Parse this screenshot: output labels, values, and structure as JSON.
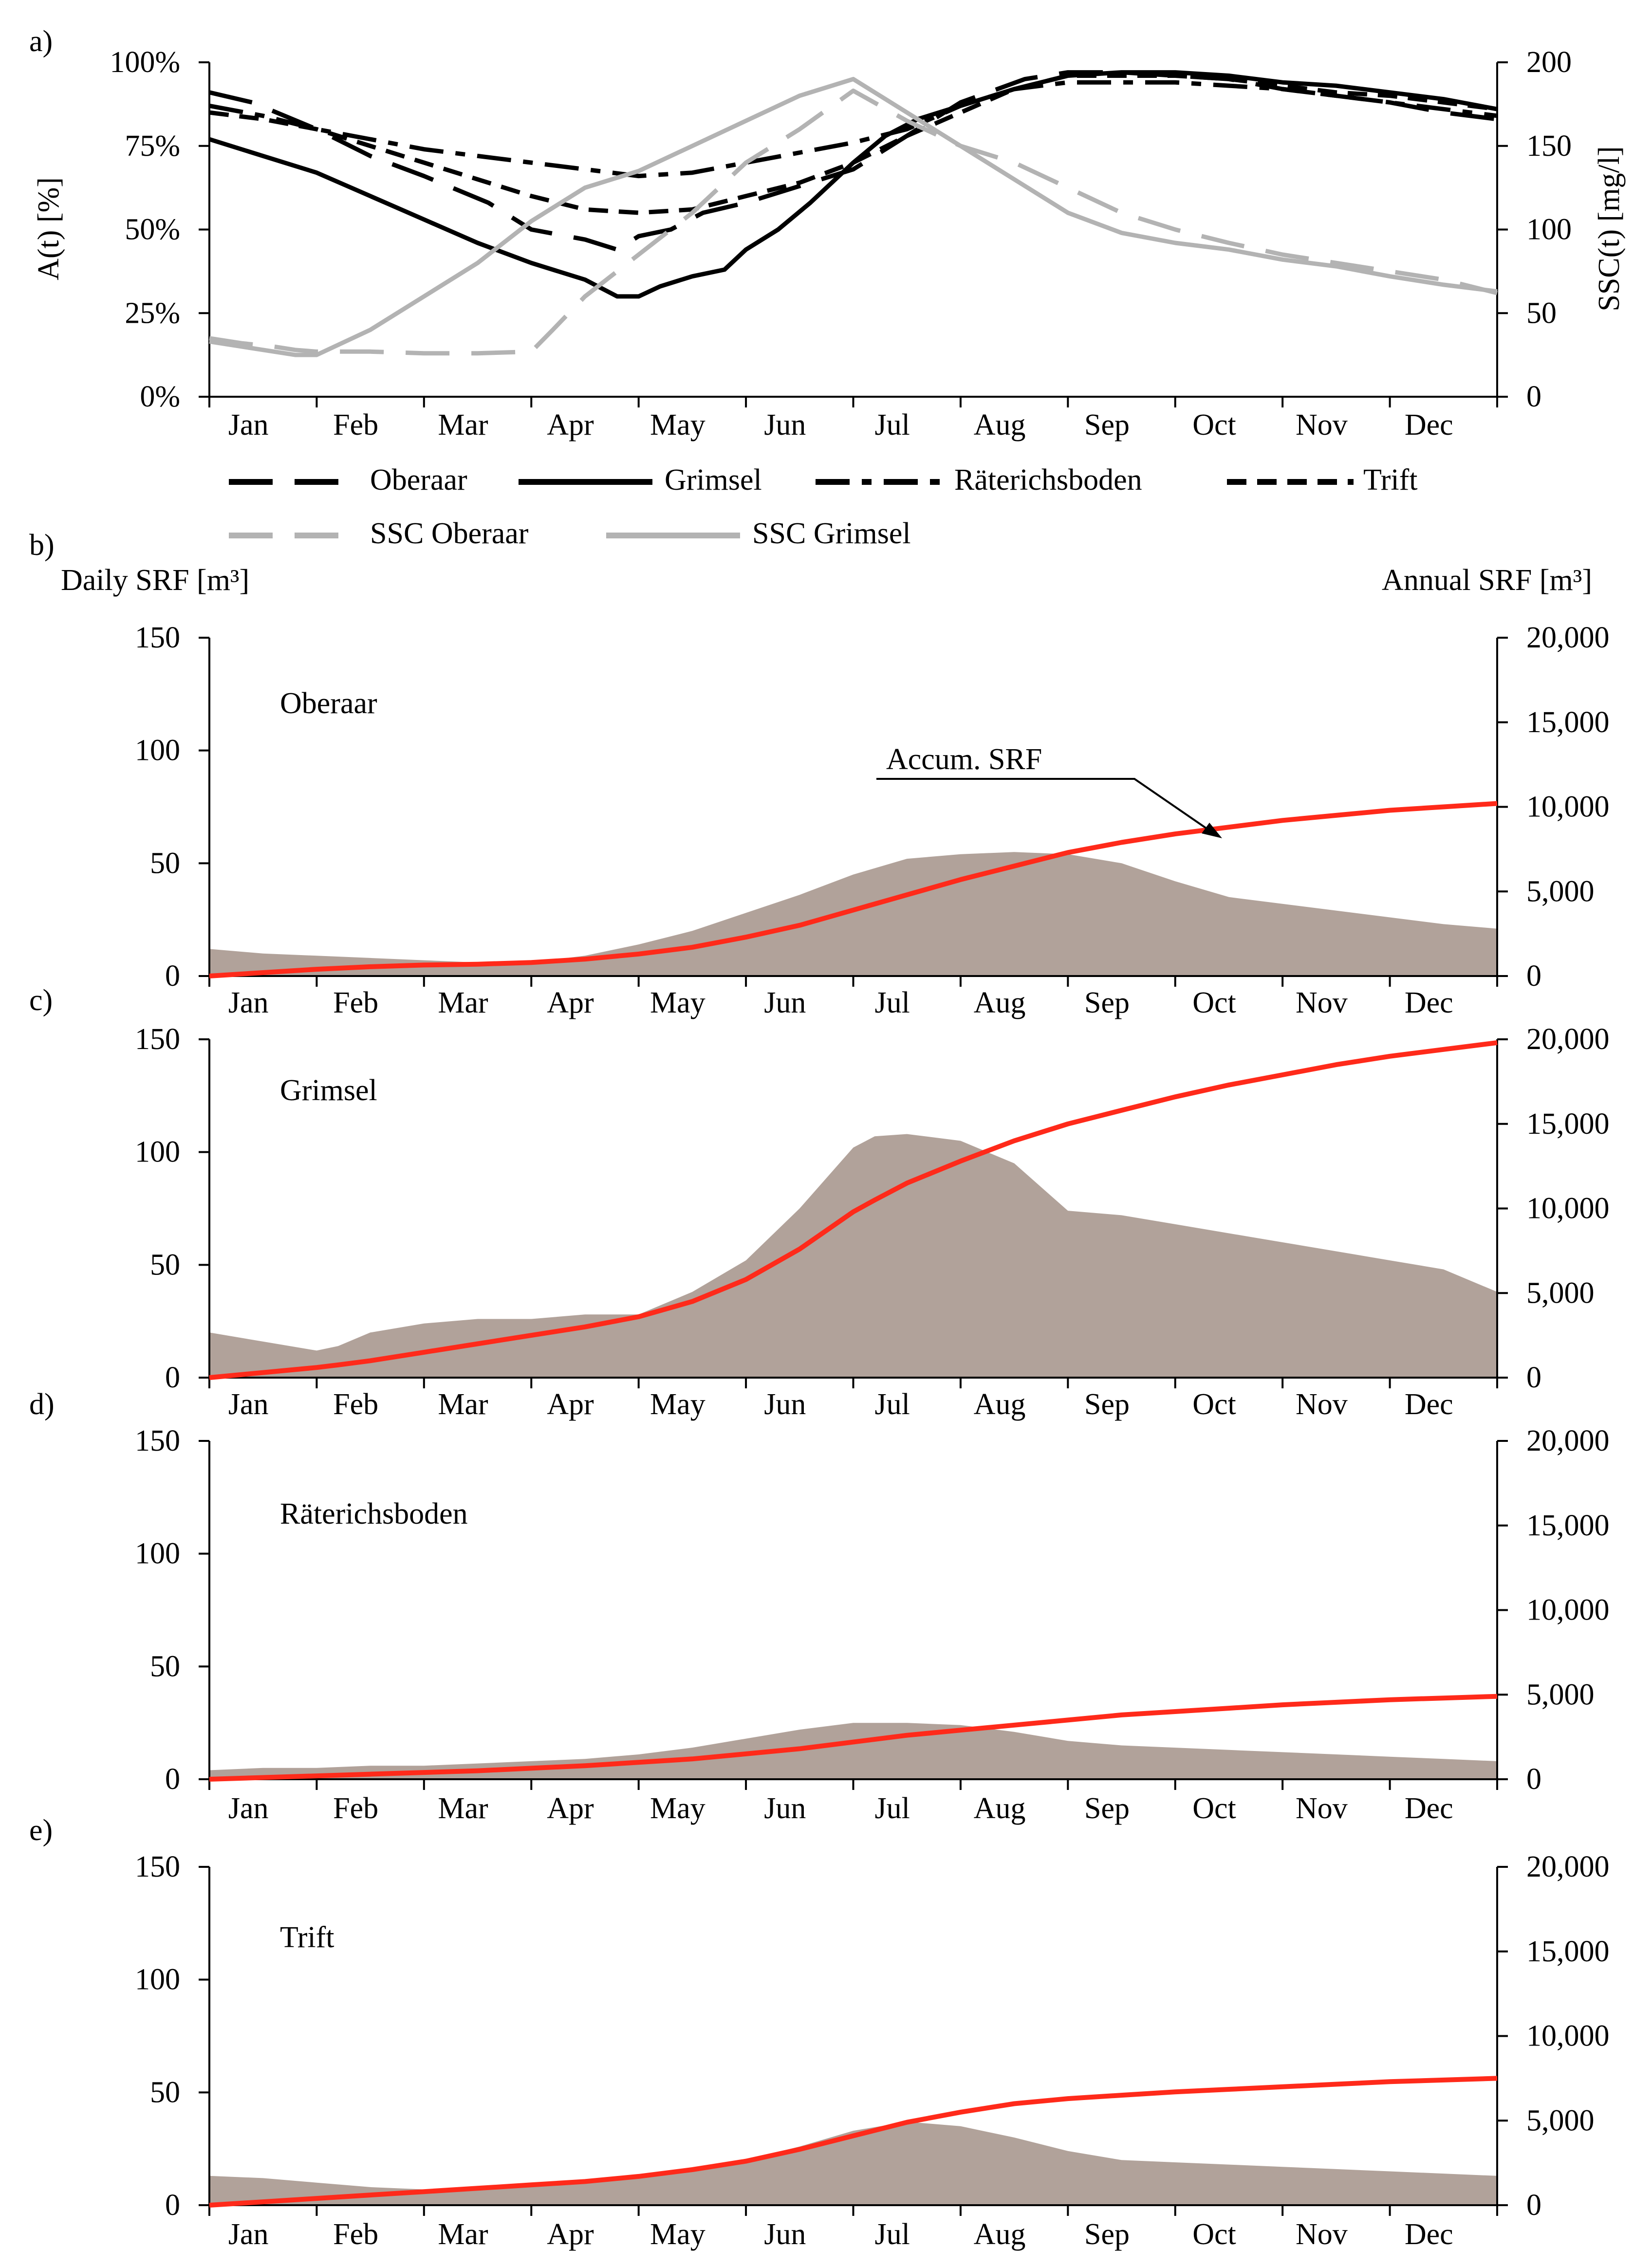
{
  "months": [
    "Jan",
    "Feb",
    "Mar",
    "Apr",
    "May",
    "Jun",
    "Jul",
    "Aug",
    "Sep",
    "Oct",
    "Nov",
    "Dec"
  ],
  "colors": {
    "black": "#000000",
    "ssc_gray": "#b3b3b3",
    "srf_fill": "#b1a29a",
    "accum_red": "#ff2a1a"
  },
  "chart_data": [
    {
      "id": "a",
      "type": "line",
      "panel_label": "a)",
      "ylabel_left": "A(t)   [%]",
      "ylabel_right": "SSC(t)   [mg/l]",
      "y_left_ticks": [
        "0%",
        "25%",
        "50%",
        "75%",
        "100%"
      ],
      "ylim_left": [
        0,
        100
      ],
      "y_right_ticks": [
        "0",
        "50",
        "100",
        "150",
        "200"
      ],
      "ylim_right": [
        0,
        200
      ],
      "x_unit": "month (0 = start of Jan, 12 = end of Dec)",
      "xlim": [
        0,
        12
      ],
      "series": [
        {
          "name": "Oberaar",
          "axis": "left",
          "style": "longdash",
          "color": "#000000",
          "x": [
            0,
            0.4,
            1,
            1.5,
            2,
            2.6,
            3,
            3.5,
            3.8,
            4,
            4.3,
            4.6,
            5,
            5.5,
            6,
            6.5,
            7,
            7.6,
            8,
            8.5,
            9,
            9.5,
            10,
            10.5,
            11,
            11.5,
            12
          ],
          "y": [
            91,
            88,
            80,
            72,
            66,
            58,
            50,
            47,
            44,
            48,
            50,
            55,
            58,
            63,
            68,
            78,
            88,
            95,
            97,
            97,
            96,
            95,
            92,
            90,
            88,
            85,
            83
          ]
        },
        {
          "name": "Grimsel",
          "axis": "left",
          "style": "solid",
          "color": "#000000",
          "x": [
            0,
            0.5,
            1,
            1.5,
            2,
            2.5,
            3,
            3.5,
            3.8,
            4,
            4.2,
            4.5,
            4.8,
            5,
            5.3,
            5.6,
            6,
            6.3,
            6.6,
            7,
            7.5,
            8,
            8.5,
            9,
            9.5,
            10,
            10.5,
            11,
            11.5,
            12
          ],
          "y": [
            77,
            72,
            67,
            60,
            53,
            46,
            40,
            35,
            30,
            30,
            33,
            36,
            38,
            44,
            50,
            58,
            70,
            78,
            83,
            87,
            92,
            96,
            97,
            97,
            96,
            94,
            93,
            91,
            89,
            86
          ]
        },
        {
          "name": "Räterichsboden",
          "axis": "left",
          "style": "dashdot",
          "color": "#000000",
          "x": [
            0,
            0.5,
            1,
            1.5,
            2,
            2.5,
            3,
            3.5,
            4,
            4.5,
            5,
            5.5,
            6,
            6.5,
            7,
            7.5,
            8,
            8.5,
            9,
            9.5,
            10,
            10.5,
            11,
            11.5,
            12
          ],
          "y": [
            87,
            84,
            80,
            77,
            74,
            72,
            70,
            68,
            66,
            67,
            70,
            73,
            76,
            80,
            87,
            92,
            94,
            94,
            94,
            93,
            92,
            90,
            88,
            86,
            84
          ]
        },
        {
          "name": "Trift",
          "axis": "left",
          "style": "shortdash",
          "color": "#000000",
          "x": [
            0,
            0.5,
            1,
            1.5,
            2,
            2.5,
            3,
            3.5,
            4,
            4.5,
            5,
            5.5,
            6,
            6.5,
            7,
            7.5,
            8,
            8.5,
            9,
            9.5,
            10,
            10.5,
            11,
            11.5,
            12
          ],
          "y": [
            85,
            83,
            80,
            75,
            70,
            65,
            60,
            56,
            55,
            56,
            60,
            64,
            70,
            78,
            85,
            92,
            96,
            96,
            96,
            95,
            93,
            91,
            90,
            88,
            86
          ]
        },
        {
          "name": "SSC Oberaar",
          "axis": "right",
          "style": "longdash",
          "color": "#b3b3b3",
          "x": [
            0,
            0.3,
            0.6,
            0.8,
            1,
            1.5,
            2,
            2.5,
            3,
            3.2,
            3.5,
            3.8,
            4,
            4.5,
            5,
            5.5,
            6,
            6.5,
            7,
            7.5,
            8,
            8.5,
            9,
            9.5,
            10,
            10.5,
            11,
            11.5,
            12
          ],
          "y": [
            35,
            32,
            30,
            28,
            27,
            27,
            26,
            26,
            27,
            40,
            60,
            75,
            85,
            110,
            140,
            160,
            183,
            165,
            150,
            140,
            125,
            110,
            100,
            92,
            85,
            80,
            75,
            70,
            62
          ]
        },
        {
          "name": "SSC Grimsel",
          "axis": "right",
          "style": "solid",
          "color": "#b3b3b3",
          "x": [
            0,
            0.5,
            0.8,
            1,
            1.5,
            2,
            2.5,
            3,
            3.5,
            4,
            4.5,
            5,
            5.5,
            6,
            6.5,
            7,
            7.5,
            8,
            8.5,
            9,
            9.5,
            10,
            10.5,
            11,
            11.5,
            12
          ],
          "y": [
            33,
            28,
            25,
            25,
            40,
            60,
            80,
            105,
            125,
            135,
            150,
            165,
            180,
            190,
            170,
            150,
            130,
            110,
            98,
            92,
            88,
            82,
            78,
            72,
            67,
            63
          ]
        }
      ]
    },
    {
      "id": "b",
      "type": "area",
      "panel_label": "b)",
      "station": "Oberaar",
      "ylabel_left": "Daily SRF [m³]",
      "ylabel_right": "Annual SRF [m³]",
      "annotation": "Accum. SRF",
      "y_left_ticks": [
        "0",
        "50",
        "100",
        "150"
      ],
      "ylim_left": [
        0,
        150
      ],
      "y_right_ticks": [
        "0",
        "5,000",
        "10,000",
        "15,000",
        "20,000"
      ],
      "ylim_right": [
        0,
        20000
      ],
      "x": [
        0,
        0.5,
        1,
        1.5,
        2,
        2.5,
        3,
        3.5,
        4,
        4.5,
        5,
        5.5,
        6,
        6.5,
        7,
        7.5,
        8,
        8.5,
        9,
        9.5,
        10,
        10.5,
        11,
        11.5,
        12
      ],
      "daily": [
        12,
        10,
        9,
        8,
        7,
        6,
        6,
        9,
        14,
        20,
        28,
        36,
        45,
        52,
        54,
        55,
        54,
        50,
        42,
        35,
        32,
        29,
        26,
        23,
        21
      ],
      "accum": [
        0,
        200,
        400,
        550,
        650,
        700,
        800,
        1000,
        1300,
        1700,
        2300,
        3000,
        3900,
        4800,
        5700,
        6500,
        7300,
        7900,
        8400,
        8800,
        9200,
        9500,
        9800,
        10000,
        10200
      ]
    },
    {
      "id": "c",
      "type": "area",
      "panel_label": "c)",
      "station": "Grimsel",
      "y_left_ticks": [
        "0",
        "50",
        "100",
        "150"
      ],
      "ylim_left": [
        0,
        150
      ],
      "y_right_ticks": [
        "0",
        "5,000",
        "10,000",
        "15,000",
        "20,000"
      ],
      "ylim_right": [
        0,
        20000
      ],
      "x": [
        0,
        0.5,
        1,
        1.2,
        1.5,
        2,
        2.5,
        3,
        3.5,
        4,
        4.5,
        5,
        5.5,
        6,
        6.2,
        6.5,
        7,
        7.5,
        8,
        8.5,
        9,
        9.5,
        10,
        10.5,
        11,
        11.5,
        12
      ],
      "daily": [
        20,
        16,
        12,
        14,
        20,
        24,
        26,
        26,
        28,
        28,
        38,
        52,
        75,
        102,
        107,
        108,
        105,
        95,
        74,
        72,
        68,
        64,
        60,
        56,
        52,
        48,
        38
      ],
      "accum": [
        0,
        300,
        600,
        750,
        1000,
        1500,
        2000,
        2500,
        3000,
        3600,
        4500,
        5800,
        7600,
        9800,
        10500,
        11500,
        12800,
        14000,
        15000,
        15800,
        16600,
        17300,
        17900,
        18500,
        19000,
        19400,
        19800
      ]
    },
    {
      "id": "d",
      "type": "area",
      "panel_label": "d)",
      "station": "Räterichsboden",
      "y_left_ticks": [
        "0",
        "50",
        "100",
        "150"
      ],
      "ylim_left": [
        0,
        150
      ],
      "y_right_ticks": [
        "0",
        "5,000",
        "10,000",
        "15,000",
        "20,000"
      ],
      "ylim_right": [
        0,
        20000
      ],
      "x": [
        0,
        0.5,
        1,
        1.5,
        2,
        2.5,
        3,
        3.5,
        4,
        4.5,
        5,
        5.5,
        6,
        6.5,
        7,
        7.5,
        8,
        8.5,
        9,
        9.5,
        10,
        10.5,
        11,
        11.5,
        12
      ],
      "daily": [
        4,
        5,
        5,
        6,
        6,
        7,
        8,
        9,
        11,
        14,
        18,
        22,
        25,
        25,
        24,
        21,
        17,
        15,
        14,
        13,
        12,
        11,
        10,
        9,
        8
      ],
      "accum": [
        0,
        100,
        200,
        300,
        400,
        500,
        650,
        800,
        1000,
        1200,
        1500,
        1800,
        2200,
        2600,
        2900,
        3200,
        3500,
        3800,
        4000,
        4200,
        4400,
        4550,
        4700,
        4800,
        4900
      ]
    },
    {
      "id": "e",
      "type": "area",
      "panel_label": "e)",
      "station": "Trift",
      "y_left_ticks": [
        "0",
        "50",
        "100",
        "150"
      ],
      "ylim_left": [
        0,
        150
      ],
      "y_right_ticks": [
        "0",
        "5,000",
        "10,000",
        "15,000",
        "20,000"
      ],
      "ylim_right": [
        0,
        20000
      ],
      "x": [
        0,
        0.5,
        1,
        1.5,
        2,
        2.5,
        3,
        3.5,
        4,
        4.5,
        5,
        5.5,
        6,
        6.5,
        7,
        7.5,
        8,
        8.5,
        9,
        9.5,
        10,
        10.5,
        11,
        11.5,
        12
      ],
      "daily": [
        13,
        12,
        10,
        8,
        7,
        7,
        9,
        10,
        12,
        15,
        20,
        26,
        33,
        37,
        35,
        30,
        24,
        20,
        19,
        18,
        17,
        16,
        15,
        14,
        13
      ],
      "accum": [
        0,
        200,
        400,
        600,
        800,
        1000,
        1200,
        1400,
        1700,
        2100,
        2600,
        3300,
        4100,
        4900,
        5500,
        6000,
        6300,
        6500,
        6700,
        6850,
        7000,
        7150,
        7300,
        7400,
        7500
      ]
    }
  ]
}
